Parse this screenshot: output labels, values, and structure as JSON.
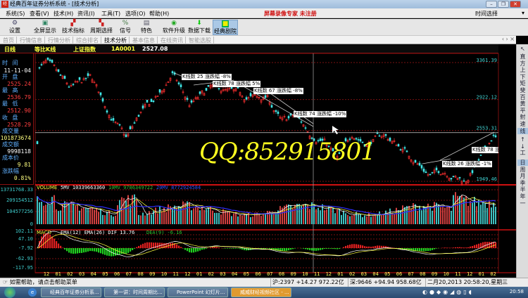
{
  "window": {
    "title": "经典百年证券分析系统 - [技术分析]",
    "app_icon": "经典",
    "controls": [
      "minimize",
      "maximize",
      "close"
    ]
  },
  "menu": [
    "系统(S)",
    "查看(V)",
    "技术(H)",
    "资讯(I)",
    "工具(T)",
    "选项(O)",
    "帮助(H)"
  ],
  "watermark_top": "屏幕录像专家  未注册",
  "time_select": "时间选择",
  "toolbar": [
    {
      "label": "设置",
      "icon": "settings-icon"
    },
    {
      "label": "全屏显示",
      "icon": "fullscreen-icon"
    },
    {
      "label": "技术指标",
      "icon": "indicator-icon"
    },
    {
      "label": "周期选择",
      "icon": "period-icon"
    },
    {
      "label": "信号",
      "icon": "signal-icon"
    },
    {
      "label": "特色",
      "icon": "feature-icon"
    },
    {
      "label": "软件升级",
      "icon": "upgrade-icon"
    },
    {
      "label": "数据下载",
      "icon": "download-icon"
    },
    {
      "label": "经典剧院",
      "icon": "theater-icon",
      "active": true
    }
  ],
  "tabs": [
    {
      "label": "首页"
    },
    {
      "label": "行情信息"
    },
    {
      "label": "行情分析"
    },
    {
      "label": "综合排名"
    },
    {
      "label": "技术分析",
      "active": true
    },
    {
      "label": "基本信息"
    },
    {
      "label": "在线资讯"
    },
    {
      "label": "智能选股"
    }
  ],
  "tab_nav": "‹ › ×",
  "header": {
    "period": "日线",
    "scale": "等比K线",
    "name": "上证指数",
    "code": "1A0001",
    "price": "2527.08"
  },
  "info": {
    "time_label": "时 间",
    "time": "11-11-04",
    "open_label": "开 盘",
    "open": "2525.24",
    "high_label": "最 高",
    "high": "2536.79",
    "low_label": "最 低",
    "low": "2512.90",
    "close_label": "收 盘",
    "close": "2528.29",
    "vol_label": "成交量",
    "vol": "101873674",
    "amt_label": "成交额",
    "amt": "9998118",
    "cost_label": "成本价",
    "cost": "9.81",
    "chg_label": "涨跌幅",
    "chg": "0.81%"
  },
  "chart_data": {
    "type": "candlestick",
    "price_axis": [
      "3361.39",
      "2922.12",
      "2553.31",
      "1949.46"
    ],
    "price_range": [
      1949.46,
      3361.39
    ],
    "price_path": [
      [
        -0.7,
        3300
      ],
      [
        0,
        3361
      ],
      [
        2,
        3050
      ],
      [
        3,
        3120
      ],
      [
        3.8,
        3180
      ],
      [
        5.6,
        2700
      ],
      [
        6.8,
        2450
      ],
      [
        8,
        2760
      ],
      [
        9.8,
        3000
      ],
      [
        10.7,
        3230
      ],
      [
        12.2,
        2850
      ],
      [
        14,
        3060
      ],
      [
        15.8,
        3000
      ],
      [
        17,
        2950
      ],
      [
        18.8,
        2940
      ],
      [
        20,
        2650
      ],
      [
        21.2,
        2730
      ],
      [
        22.4,
        2520
      ],
      [
        23.6,
        2440
      ],
      [
        24.8,
        2200
      ],
      [
        26,
        2520
      ],
      [
        27.2,
        2400
      ],
      [
        28.7,
        2500
      ],
      [
        30.8,
        2280
      ],
      [
        32.6,
        2020
      ],
      [
        33.8,
        2080
      ],
      [
        35.6,
        1950
      ],
      [
        36.8,
        2180
      ],
      [
        38,
        2500
      ],
      [
        38.4,
        2430
      ]
    ],
    "x_labels": [
      "12",
      "01",
      "02",
      "03",
      "04",
      "05",
      "06",
      "07",
      "08",
      "09",
      "10",
      "11",
      "12",
      "01",
      "02",
      "03",
      "04",
      "05",
      "06",
      "07",
      "08",
      "09",
      "10",
      "11",
      "12",
      "01",
      "02",
      "03",
      "04",
      "05",
      "06",
      "07",
      "08",
      "09",
      "10",
      "11",
      "12",
      "01",
      "02"
    ],
    "annotations": [
      "K线数 25 涨跌幅 -8%",
      "K线数 78 涨跌幅 5%",
      "K线数 67 涨跌幅 -8%",
      "K线数 74 涨跌幅 -10%",
      "K线数 26 涨跌幅 -1%",
      "K线数 78 涨跌幅 1"
    ],
    "volume": {
      "title": "VOLUME",
      "ma5": "5MV 10339663360",
      "ma10": "10MV 9786349722",
      "ma20": "20MV 8772924584",
      "axis": [
        "313731768.33",
        "209154512",
        "104577256",
        "0"
      ]
    },
    "macd": {
      "title": "MACD",
      "params": "EMA(12)  EMA(26)  DIF 13.76",
      "dea": "DEA(9)  -6.16",
      "axis": [
        "102.11",
        "47.10",
        "-7.92",
        "-62.93",
        "-117.95"
      ]
    },
    "colors": {
      "up": "#ff3030",
      "down": "#40e8e8",
      "dif": "#ffffff",
      "dea": "#ffff40",
      "ma5": "#ffffff",
      "ma10": "#ffff40",
      "ma20": "#3030ff",
      "grid": "#7a1010"
    }
  },
  "watermark": "QQ:852915801",
  "right_tools": [
    "直",
    "方",
    "上",
    "下",
    "矩",
    "斐",
    "百",
    "黄",
    "平",
    "射",
    "速",
    "线",
    "↑",
    "↓",
    "工",
    "日",
    "周",
    "月",
    "季",
    "半",
    "年",
    "一"
  ],
  "status": {
    "help": "如需帮助，请点击帮助菜单",
    "sh": "沪:2397 +14.27 972.22亿",
    "sz": "深:9646 +94.94 958.68亿",
    "datetime": "二月20,2013 20:58:20,星期三"
  },
  "taskbar": {
    "tasks": [
      "经典百年证券分析系...",
      "第一讲：时间周期比...",
      "PowerPoint 幻灯片...",
      "威威财经视频社区 - ..."
    ],
    "clock": "20:58"
  }
}
